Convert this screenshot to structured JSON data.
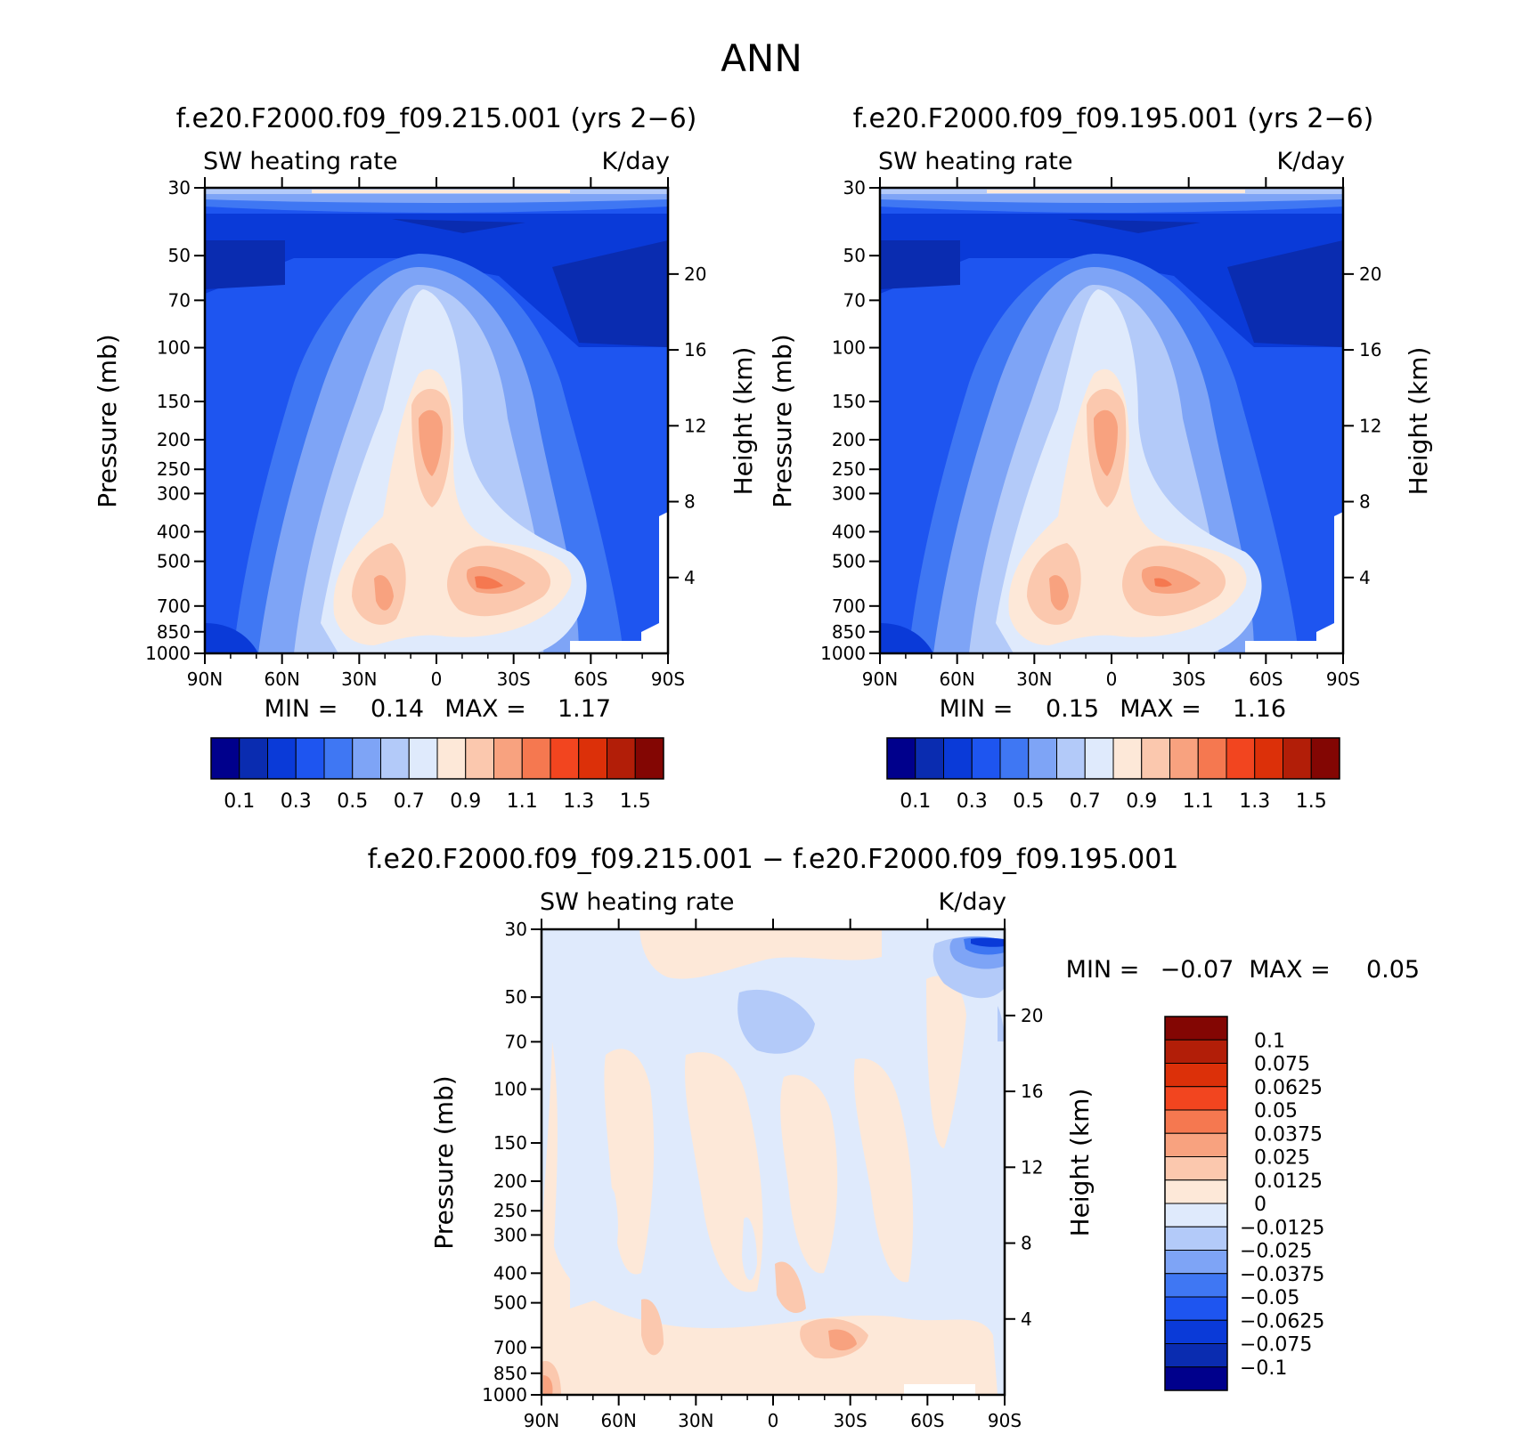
{
  "page_title": "ANN",
  "chart_data": [
    {
      "type": "contour",
      "title": "f.e20.F2000.f09_f09.215.001 (yrs 2−6)",
      "variable": "SW heating rate",
      "units": "K/day",
      "ylabel": "Pressure (mb)",
      "ylabel_right": "Height (km)",
      "x_ticks": [
        "90N",
        "60N",
        "30N",
        "0",
        "30S",
        "60S",
        "90S"
      ],
      "y_ticks": [
        "30",
        "50",
        "70",
        "100",
        "150",
        "200",
        "250",
        "300",
        "400",
        "500",
        "700",
        "850",
        "1000"
      ],
      "height_ticks": [
        "20",
        "16",
        "12",
        "8",
        "4"
      ],
      "min_label": "MIN =",
      "min": "0.14",
      "max_label": "MAX =",
      "max": "1.17",
      "colorbar_labels": [
        "0.1",
        "0.3",
        "0.5",
        "0.7",
        "0.9",
        "1.1",
        "1.3",
        "1.5"
      ]
    },
    {
      "type": "contour",
      "title": "f.e20.F2000.f09_f09.195.001 (yrs 2−6)",
      "variable": "SW heating rate",
      "units": "K/day",
      "ylabel": "Pressure (mb)",
      "ylabel_right": "Height (km)",
      "x_ticks": [
        "90N",
        "60N",
        "30N",
        "0",
        "30S",
        "60S",
        "90S"
      ],
      "y_ticks": [
        "30",
        "50",
        "70",
        "100",
        "150",
        "200",
        "250",
        "300",
        "400",
        "500",
        "700",
        "850",
        "1000"
      ],
      "height_ticks": [
        "20",
        "16",
        "12",
        "8",
        "4"
      ],
      "min_label": "MIN =",
      "min": "0.15",
      "max_label": "MAX =",
      "max": "1.16",
      "colorbar_labels": [
        "0.1",
        "0.3",
        "0.5",
        "0.7",
        "0.9",
        "1.1",
        "1.3",
        "1.5"
      ]
    },
    {
      "type": "contour",
      "title": "f.e20.F2000.f09_f09.215.001 − f.e20.F2000.f09_f09.195.001",
      "variable": "SW heating rate",
      "units": "K/day",
      "ylabel": "Pressure (mb)",
      "ylabel_right": "Height (km)",
      "x_ticks": [
        "90N",
        "60N",
        "30N",
        "0",
        "30S",
        "60S",
        "90S"
      ],
      "y_ticks": [
        "30",
        "50",
        "70",
        "100",
        "150",
        "200",
        "250",
        "300",
        "400",
        "500",
        "700",
        "850",
        "1000"
      ],
      "height_ticks": [
        "20",
        "16",
        "12",
        "8",
        "4"
      ],
      "min_label": "MIN =",
      "min": "−0.07",
      "max_label": "MAX =",
      "max": "0.05",
      "colorbar_labels": [
        "0.1",
        "0.075",
        "0.0625",
        "0.05",
        "0.0375",
        "0.025",
        "0.0125",
        "0",
        "−0.0125",
        "−0.025",
        "−0.0375",
        "−0.05",
        "−0.0625",
        "−0.075",
        "−0.1"
      ]
    }
  ],
  "colors": {
    "abs_scale": [
      "#00008c",
      "#0a2cb0",
      "#0a3ad8",
      "#1e55f0",
      "#3f77f3",
      "#7ea4f6",
      "#b3caf9",
      "#dfeafc",
      "#fde8d8",
      "#fbc8ae",
      "#f8a27f",
      "#f57850",
      "#f2451f",
      "#dc3009",
      "#b21e08",
      "#830603"
    ],
    "diff_scale": [
      "#830603",
      "#b21e08",
      "#dc3009",
      "#f2451f",
      "#f57850",
      "#f8a27f",
      "#fbc8ae",
      "#fde8d8",
      "#dfeafc",
      "#b3caf9",
      "#7ea4f6",
      "#3f77f3",
      "#1e55f0",
      "#0a3ad8",
      "#0a2cb0",
      "#00008c"
    ]
  }
}
